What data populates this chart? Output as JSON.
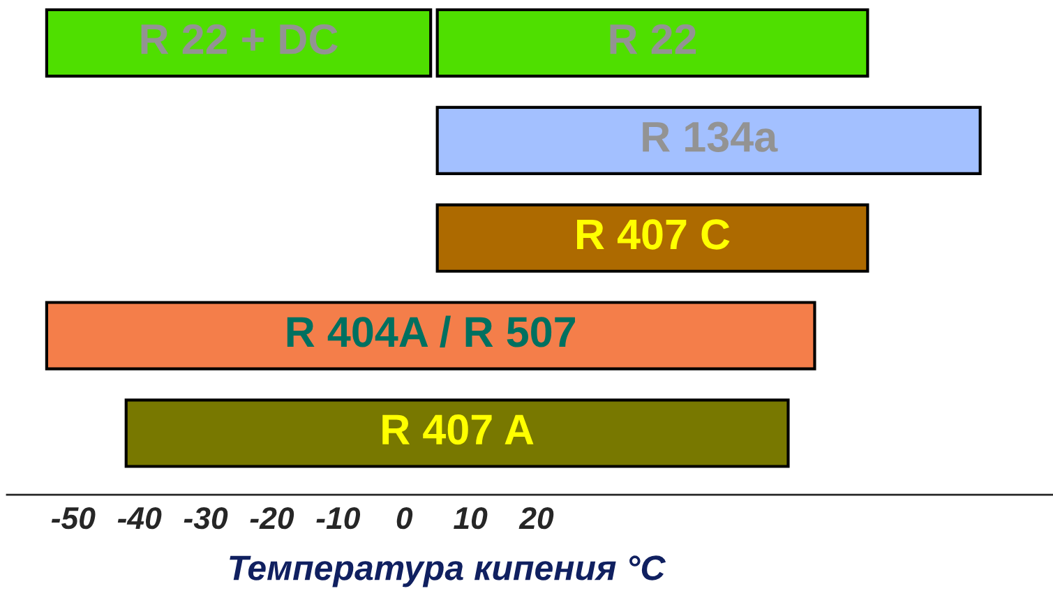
{
  "chart_data": {
    "type": "bar",
    "orientation": "horizontal",
    "xlabel": "Температура кипения °C",
    "categories": [
      "R 22",
      "R 134a",
      "R 407 C",
      "R 404A / R 507",
      "R 407 A"
    ],
    "series": [
      {
        "values": [
          65,
          82,
          65,
          116,
          100
        ],
        "base": [
          5,
          5,
          5,
          -54,
          -42
        ],
        "colors": [
          "#4fdf00",
          "#a3c0ff",
          "#ad6a00",
          "#f47e4a",
          "#787800"
        ]
      },
      {
        "name": "R 22 + DC",
        "values": [
          58,
          null,
          null,
          null,
          null
        ],
        "base": [
          -54,
          null,
          null,
          null,
          null
        ],
        "color": "#4fdf00"
      }
    ],
    "xlim": [
      -60,
      98
    ],
    "xticks": [
      -50,
      -40,
      -30,
      -20,
      -10,
      0,
      10,
      20
    ],
    "grid": false,
    "legend": false
  }
}
